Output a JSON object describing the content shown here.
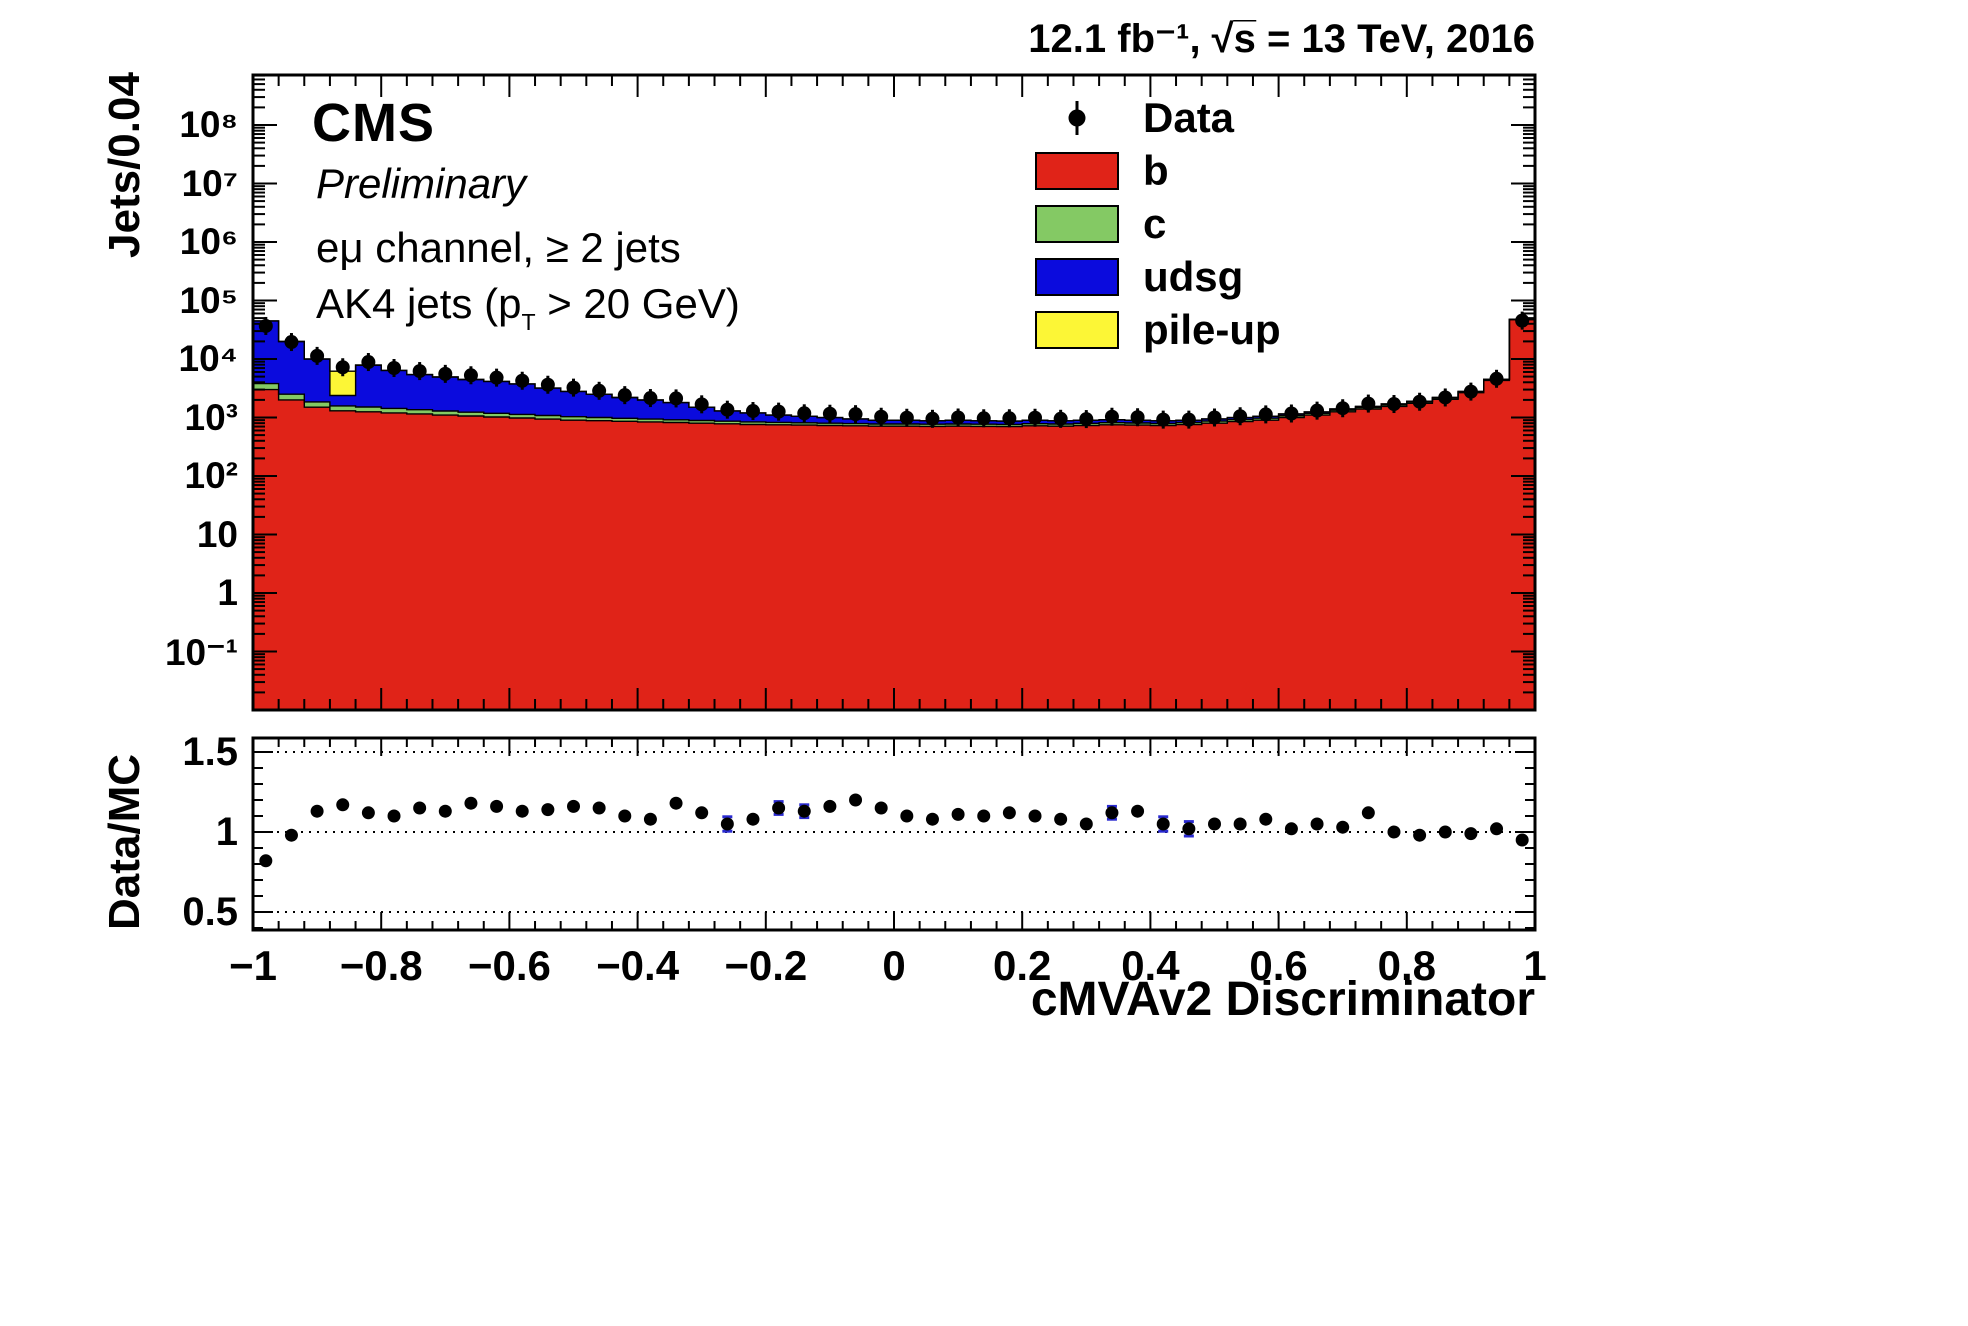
{
  "header": {
    "lumi": "12.1 fb⁻¹,  √s̅ = 13 TeV, 2016"
  },
  "plot": {
    "experiment": "CMS",
    "label": "Preliminary",
    "channel_line1": "eμ channel, ≥ 2 jets",
    "selection_pre": "AK4 jets (p",
    "selection_sub": "T",
    "selection_post": " > 20 GeV)"
  },
  "legend": {
    "entries": [
      {
        "label": "Data",
        "type": "marker"
      },
      {
        "label": "b",
        "type": "box",
        "color": "#e02318"
      },
      {
        "label": "c",
        "type": "box",
        "color": "#84c964"
      },
      {
        "label": "udsg",
        "type": "box",
        "color": "#0b0bdd"
      },
      {
        "label": "pile-up",
        "type": "box",
        "color": "#fcf636"
      }
    ]
  },
  "axes": {
    "main_y_title": "Jets/0.04",
    "ratio_y_title": "Data/MC",
    "x_title": "cMVAv2 Discriminator",
    "main_y_ticks": [
      {
        "value": 100000000,
        "label": "10⁸"
      },
      {
        "value": 10000000,
        "label": "10⁷"
      },
      {
        "value": 1000000,
        "label": "10⁶"
      },
      {
        "value": 100000,
        "label": "10⁵"
      },
      {
        "value": 10000,
        "label": "10⁴"
      },
      {
        "value": 1000,
        "label": "10³"
      },
      {
        "value": 100,
        "label": "10²"
      },
      {
        "value": 10,
        "label": "10"
      },
      {
        "value": 1,
        "label": "1"
      },
      {
        "value": 0.1,
        "label": "10⁻¹"
      }
    ],
    "x_ticks": [
      {
        "value": -1,
        "label": "−1"
      },
      {
        "value": -0.8,
        "label": "−0.8"
      },
      {
        "value": -0.6,
        "label": "−0.6"
      },
      {
        "value": -0.4,
        "label": "−0.4"
      },
      {
        "value": -0.2,
        "label": "−0.2"
      },
      {
        "value": 0,
        "label": "0"
      },
      {
        "value": 0.2,
        "label": "0.2"
      },
      {
        "value": 0.4,
        "label": "0.4"
      },
      {
        "value": 0.6,
        "label": "0.6"
      },
      {
        "value": 0.8,
        "label": "0.8"
      },
      {
        "value": 1,
        "label": "1"
      }
    ],
    "ratio_y_ticks": [
      {
        "value": 0.5,
        "label": "0.5"
      },
      {
        "value": 1,
        "label": "1"
      },
      {
        "value": 1.5,
        "label": "1.5"
      }
    ]
  },
  "chart_data": {
    "type": "bar",
    "stacked": true,
    "y_scale": "log",
    "x_range": [
      -1,
      1
    ],
    "y_range": [
      0.01,
      500000000
    ],
    "n_bins": 50,
    "bin_width": 0.04,
    "xlabel": "cMVAv2 Discriminator",
    "ylabel": "Jets/0.04",
    "legend_position": "top-right",
    "series": [
      {
        "name": "b",
        "color": "#e02318",
        "values": [
          3000,
          2000,
          1500,
          1300,
          1250,
          1200,
          1150,
          1100,
          1060,
          1020,
          980,
          940,
          900,
          880,
          860,
          840,
          820,
          800,
          780,
          760,
          750,
          740,
          730,
          720,
          710,
          710,
          705,
          710,
          705,
          700,
          720,
          710,
          730,
          750,
          740,
          730,
          760,
          800,
          850,
          900,
          1000,
          1100,
          1250,
          1400,
          1550,
          1750,
          2050,
          2650,
          4300,
          47000
        ]
      },
      {
        "name": "c",
        "color": "#84c964",
        "values": [
          800,
          500,
          350,
          280,
          260,
          230,
          210,
          190,
          170,
          160,
          150,
          140,
          130,
          120,
          110,
          100,
          95,
          90,
          85,
          80,
          75,
          72,
          70,
          68,
          65,
          65,
          64,
          65,
          64,
          63,
          65,
          64,
          65,
          66,
          65,
          64,
          65,
          68,
          70,
          72,
          75,
          78,
          82,
          86,
          90,
          95,
          100,
          110,
          130,
          300
        ]
      },
      {
        "name": "udsg",
        "color": "#0b0bdd",
        "values": [
          41000,
          17400,
          8100,
          800,
          6300,
          4950,
          4050,
          3640,
          3240,
          2960,
          2630,
          2100,
          1760,
          1490,
          1225,
          1055,
          880,
          607,
          432,
          357,
          272,
          235,
          197,
          160,
          123,
          123,
          110,
          123,
          110,
          105,
          113,
          104,
          103,
          102,
          93,
          84,
          73,
          80,
          78,
          76,
          73,
          70,
          66,
          62,
          58,
          53,
          48,
          38,
          68,
          400
        ]
      },
      {
        "name": "pile-up",
        "color": "#fcf636",
        "values": [
          0,
          0,
          60,
          3800,
          120,
          0,
          0,
          0,
          0,
          0,
          0,
          0,
          0,
          0,
          0,
          0,
          0,
          0,
          0,
          0,
          0,
          0,
          0,
          0,
          0,
          0,
          0,
          0,
          0,
          0,
          0,
          0,
          0,
          0,
          0,
          0,
          0,
          0,
          0,
          0,
          0,
          0,
          0,
          0,
          0,
          0,
          0,
          0,
          0,
          0
        ]
      }
    ],
    "data_points": {
      "name": "Data",
      "marker": "filled-circle",
      "color": "#000000",
      "values": [
        36700,
        19500,
        11300,
        7230,
        8880,
        7020,
        6220,
        5570,
        5270,
        4800,
        4250,
        3630,
        3240,
        2860,
        2410,
        2150,
        2120,
        1680,
        1360,
        1290,
        1260,
        1180,
        1160,
        1140,
        1030,
        990,
        950,
        1000,
        970,
        970,
        990,
        950,
        940,
        1030,
        1010,
        920,
        920,
        1000,
        1050,
        1130,
        1170,
        1310,
        1440,
        1730,
        1700,
        1860,
        2200,
        2770,
        4590,
        45300
      ]
    },
    "ratio_panel": {
      "ylabel": "Data/MC",
      "ticks": [
        0.5,
        1,
        1.5
      ],
      "values": [
        0.82,
        0.98,
        1.13,
        1.17,
        1.12,
        1.1,
        1.15,
        1.13,
        1.18,
        1.16,
        1.13,
        1.14,
        1.16,
        1.15,
        1.1,
        1.08,
        1.18,
        1.12,
        1.05,
        1.08,
        1.15,
        1.13,
        1.16,
        1.2,
        1.15,
        1.1,
        1.08,
        1.11,
        1.1,
        1.12,
        1.1,
        1.08,
        1.05,
        1.12,
        1.13,
        1.05,
        1.02,
        1.05,
        1.05,
        1.08,
        1.02,
        1.05,
        1.03,
        1.12,
        1.0,
        0.98,
        1.0,
        0.99,
        1.02,
        0.95
      ],
      "errors": [
        0.03,
        0.02,
        0.02,
        0.03,
        0.02,
        0.02,
        0.02,
        0.02,
        0.02,
        0.02,
        0.02,
        0.02,
        0.02,
        0.02,
        0.02,
        0.02,
        0.02,
        0.02,
        0.045,
        0.02,
        0.04,
        0.04,
        0.02,
        0.03,
        0.02,
        0.02,
        0.02,
        0.02,
        0.02,
        0.02,
        0.02,
        0.02,
        0.02,
        0.04,
        0.02,
        0.045,
        0.045,
        0.02,
        0.02,
        0.03,
        0.02,
        0.02,
        0.03,
        0.03,
        0.02,
        0.02,
        0.02,
        0.02,
        0.025,
        0.03
      ],
      "highlight_error_bins": [
        18,
        20,
        21,
        33,
        35,
        36
      ],
      "highlight_error_color": "#2a2ad0"
    }
  }
}
